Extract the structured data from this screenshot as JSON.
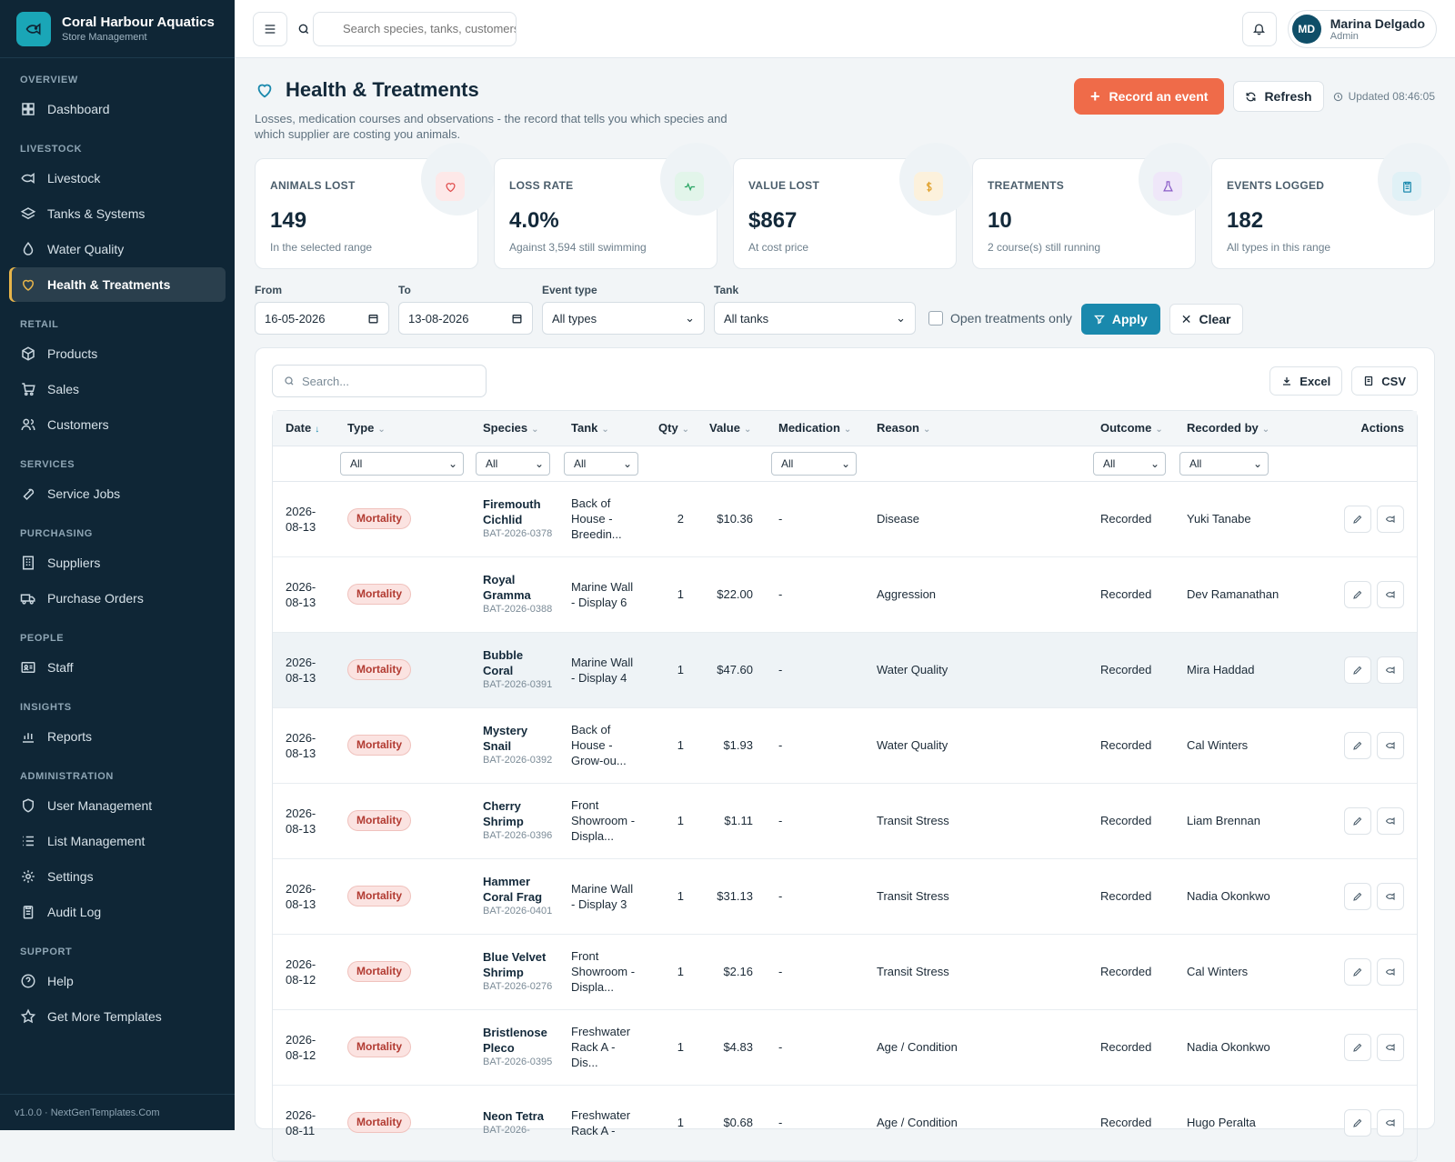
{
  "brand": {
    "name": "Coral Harbour Aquatics",
    "subtitle": "Store Management"
  },
  "sidebar": {
    "sections": [
      {
        "title": "OVERVIEW",
        "items": [
          {
            "label": "Dashboard",
            "icon": "dashboard-icon"
          }
        ]
      },
      {
        "title": "LIVESTOCK",
        "items": [
          {
            "label": "Livestock",
            "icon": "fish-icon"
          },
          {
            "label": "Tanks & Systems",
            "icon": "layers-icon"
          },
          {
            "label": "Water Quality",
            "icon": "droplet-icon"
          },
          {
            "label": "Health & Treatments",
            "icon": "heart-icon",
            "active": true
          }
        ]
      },
      {
        "title": "RETAIL",
        "items": [
          {
            "label": "Products",
            "icon": "box-icon"
          },
          {
            "label": "Sales",
            "icon": "cart-icon"
          },
          {
            "label": "Customers",
            "icon": "users-icon"
          }
        ]
      },
      {
        "title": "SERVICES",
        "items": [
          {
            "label": "Service Jobs",
            "icon": "wrench-icon"
          }
        ]
      },
      {
        "title": "PURCHASING",
        "items": [
          {
            "label": "Suppliers",
            "icon": "building-icon"
          },
          {
            "label": "Purchase Orders",
            "icon": "truck-icon"
          }
        ]
      },
      {
        "title": "PEOPLE",
        "items": [
          {
            "label": "Staff",
            "icon": "id-card-icon"
          }
        ]
      },
      {
        "title": "INSIGHTS",
        "items": [
          {
            "label": "Reports",
            "icon": "bar-chart-icon"
          }
        ]
      },
      {
        "title": "ADMINISTRATION",
        "items": [
          {
            "label": "User Management",
            "icon": "shield-icon"
          },
          {
            "label": "List Management",
            "icon": "list-icon"
          },
          {
            "label": "Settings",
            "icon": "gear-icon"
          },
          {
            "label": "Audit Log",
            "icon": "clipboard-icon"
          }
        ]
      },
      {
        "title": "SUPPORT",
        "items": [
          {
            "label": "Help",
            "icon": "help-icon"
          },
          {
            "label": "Get More Templates",
            "icon": "star-icon"
          }
        ]
      }
    ],
    "footer": "v1.0.0 · NextGenTemplates.Com"
  },
  "topbar": {
    "search_placeholder": "Search species, tanks, customers",
    "user_name": "Marina Delgado",
    "user_role": "Admin",
    "user_initials": "MD"
  },
  "page": {
    "title": "Health & Treatments",
    "subtitle": "Losses, medication courses and observations - the record that tells you which species and which supplier are costing you animals.",
    "record_button": "Record an event",
    "refresh_button": "Refresh",
    "updated": "Updated 08:46:05"
  },
  "kpis": [
    {
      "label": "ANIMALS LOST",
      "value": "149",
      "note": "In the selected range",
      "icon": "heart-icon",
      "color": "#e04b4b",
      "bg": "#fde8e8"
    },
    {
      "label": "LOSS RATE",
      "value": "4.0%",
      "note": "Against 3,594 still swimming",
      "icon": "pulse-icon",
      "color": "#2aa564",
      "bg": "#e2f5ea"
    },
    {
      "label": "VALUE LOST",
      "value": "$867",
      "note": "At cost price",
      "icon": "dollar-icon",
      "color": "#e0a02a",
      "bg": "#fcf1dc"
    },
    {
      "label": "TREATMENTS",
      "value": "10",
      "note": "2 course(s) still running",
      "icon": "flask-icon",
      "color": "#8a5cc7",
      "bg": "#efe7f9"
    },
    {
      "label": "EVENTS LOGGED",
      "value": "182",
      "note": "All types in this range",
      "icon": "clipboard-icon",
      "color": "#1a89ad",
      "bg": "#e0f1f6"
    }
  ],
  "filters": {
    "from_label": "From",
    "from_value": "16-05-2026",
    "to_label": "To",
    "to_value": "13-08-2026",
    "type_label": "Event type",
    "type_value": "All types",
    "tank_label": "Tank",
    "tank_value": "All tanks",
    "open_only": "Open treatments only",
    "apply": "Apply",
    "clear": "Clear"
  },
  "table": {
    "search_placeholder": "Search...",
    "excel": "Excel",
    "csv": "CSV",
    "columns": [
      "Date",
      "Type",
      "Species",
      "Tank",
      "Qty",
      "Value",
      "Medication",
      "Reason",
      "Outcome",
      "Recorded by",
      "Actions"
    ],
    "column_filter_value": "All",
    "rows": [
      {
        "date": "2026-08-13",
        "type": "Mortality",
        "species": "Firemouth Cichlid",
        "batch": "BAT-2026-0378",
        "tank": "Back of House - Breedin...",
        "qty": "2",
        "value": "$10.36",
        "medication": "-",
        "reason": "Disease",
        "outcome": "Recorded",
        "recorded_by": "Yuki Tanabe"
      },
      {
        "date": "2026-08-13",
        "type": "Mortality",
        "species": "Royal Gramma",
        "batch": "BAT-2026-0388",
        "tank": "Marine Wall - Display 6",
        "qty": "1",
        "value": "$22.00",
        "medication": "-",
        "reason": "Aggression",
        "outcome": "Recorded",
        "recorded_by": "Dev Ramanathan"
      },
      {
        "date": "2026-08-13",
        "type": "Mortality",
        "species": "Bubble Coral",
        "batch": "BAT-2026-0391",
        "tank": "Marine Wall - Display 4",
        "qty": "1",
        "value": "$47.60",
        "medication": "-",
        "reason": "Water Quality",
        "outcome": "Recorded",
        "recorded_by": "Mira Haddad"
      },
      {
        "date": "2026-08-13",
        "type": "Mortality",
        "species": "Mystery Snail",
        "batch": "BAT-2026-0392",
        "tank": "Back of House - Grow-ou...",
        "qty": "1",
        "value": "$1.93",
        "medication": "-",
        "reason": "Water Quality",
        "outcome": "Recorded",
        "recorded_by": "Cal Winters"
      },
      {
        "date": "2026-08-13",
        "type": "Mortality",
        "species": "Cherry Shrimp",
        "batch": "BAT-2026-0396",
        "tank": "Front Showroom - Displa...",
        "qty": "1",
        "value": "$1.11",
        "medication": "-",
        "reason": "Transit Stress",
        "outcome": "Recorded",
        "recorded_by": "Liam Brennan"
      },
      {
        "date": "2026-08-13",
        "type": "Mortality",
        "species": "Hammer Coral Frag",
        "batch": "BAT-2026-0401",
        "tank": "Marine Wall - Display 3",
        "qty": "1",
        "value": "$31.13",
        "medication": "-",
        "reason": "Transit Stress",
        "outcome": "Recorded",
        "recorded_by": "Nadia Okonkwo"
      },
      {
        "date": "2026-08-12",
        "type": "Mortality",
        "species": "Blue Velvet Shrimp",
        "batch": "BAT-2026-0276",
        "tank": "Front Showroom - Displa...",
        "qty": "1",
        "value": "$2.16",
        "medication": "-",
        "reason": "Transit Stress",
        "outcome": "Recorded",
        "recorded_by": "Cal Winters"
      },
      {
        "date": "2026-08-12",
        "type": "Mortality",
        "species": "Bristlenose Pleco",
        "batch": "BAT-2026-0395",
        "tank": "Freshwater Rack A - Dis...",
        "qty": "1",
        "value": "$4.83",
        "medication": "-",
        "reason": "Age / Condition",
        "outcome": "Recorded",
        "recorded_by": "Nadia Okonkwo"
      },
      {
        "date": "2026-08-11",
        "type": "Mortality",
        "species": "Neon Tetra",
        "batch": "BAT-2026-",
        "tank": "Freshwater Rack A -",
        "qty": "1",
        "value": "$0.68",
        "medication": "-",
        "reason": "Age / Condition",
        "outcome": "Recorded",
        "recorded_by": "Hugo Peralta"
      }
    ]
  }
}
